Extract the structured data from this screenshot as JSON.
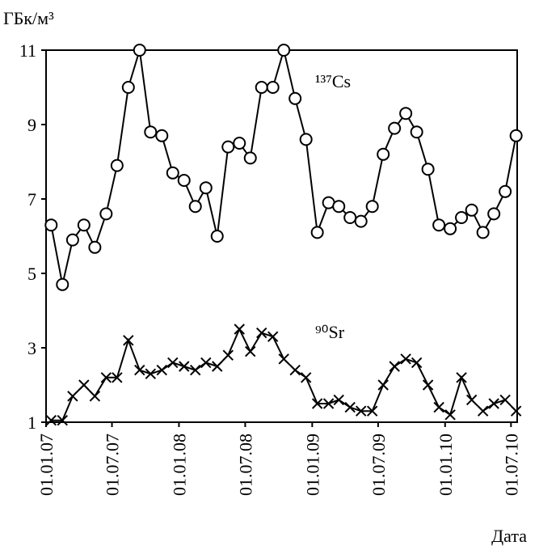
{
  "chart_data": {
    "type": "line",
    "y_label": "ГБк/м³",
    "x_label": "Дата",
    "x": [
      "2007-01-15",
      "2007-02-15",
      "2007-03-15",
      "2007-04-15",
      "2007-05-15",
      "2007-06-15",
      "2007-07-15",
      "2007-08-15",
      "2007-09-15",
      "2007-10-15",
      "2007-11-15",
      "2007-12-15",
      "2008-01-15",
      "2008-02-15",
      "2008-03-15",
      "2008-04-15",
      "2008-05-15",
      "2008-06-15",
      "2008-07-15",
      "2008-08-15",
      "2008-09-15",
      "2008-10-15",
      "2008-11-15",
      "2008-12-15",
      "2009-01-15",
      "2009-02-15",
      "2009-03-15",
      "2009-04-15",
      "2009-05-15",
      "2009-06-15",
      "2009-07-15",
      "2009-08-15",
      "2009-09-15",
      "2009-10-15",
      "2009-11-15",
      "2009-12-15",
      "2010-01-15",
      "2010-02-15",
      "2010-03-15",
      "2010-04-15",
      "2010-05-15",
      "2010-06-15",
      "2010-07-15"
    ],
    "series": [
      {
        "name": "¹³⁷Cs",
        "color": "#000000",
        "marker": "circle",
        "values": [
          6.3,
          4.7,
          5.9,
          6.3,
          5.7,
          6.6,
          7.9,
          10.0,
          11.0,
          8.8,
          8.7,
          7.7,
          7.5,
          6.8,
          7.3,
          6.0,
          8.4,
          8.5,
          8.1,
          10.0,
          10.0,
          11.0,
          9.7,
          8.6,
          6.1,
          6.9,
          6.8,
          6.5,
          6.4,
          6.8,
          8.2,
          8.9,
          9.3,
          8.8,
          7.8,
          6.3,
          6.2,
          6.5,
          6.7,
          6.1,
          6.6,
          7.2,
          8.7
        ]
      },
      {
        "name": "⁹⁰Sr",
        "color": "#000000",
        "marker": "x",
        "values": [
          1.05,
          1.05,
          1.7,
          2.0,
          1.7,
          2.2,
          2.2,
          3.2,
          2.4,
          2.3,
          2.4,
          2.6,
          2.5,
          2.4,
          2.6,
          2.5,
          2.8,
          3.5,
          2.9,
          3.4,
          3.3,
          2.7,
          2.4,
          2.2,
          1.5,
          1.5,
          1.6,
          1.4,
          1.3,
          1.3,
          2.0,
          2.5,
          2.7,
          2.6,
          2.0,
          1.4,
          1.2,
          2.2,
          1.6,
          1.3,
          1.5,
          1.6,
          1.3
        ]
      }
    ],
    "xlim": [
      "2007-01-01",
      "2010-07-18"
    ],
    "xticks": [
      {
        "value": "2007-01-01",
        "label": "01.01.07"
      },
      {
        "value": "2007-07-01",
        "label": "01.07.07"
      },
      {
        "value": "2008-01-01",
        "label": "01.01.08"
      },
      {
        "value": "2008-07-01",
        "label": "01.07.08"
      },
      {
        "value": "2009-01-01",
        "label": "01.01.09"
      },
      {
        "value": "2009-07-01",
        "label": "01.07.09"
      },
      {
        "value": "2010-01-01",
        "label": "01.01.10"
      },
      {
        "value": "2010-07-01",
        "label": "01.07.10"
      }
    ],
    "ylim": [
      1,
      11
    ],
    "yticks": [
      1,
      3,
      5,
      7,
      9,
      11
    ],
    "grid": false
  }
}
